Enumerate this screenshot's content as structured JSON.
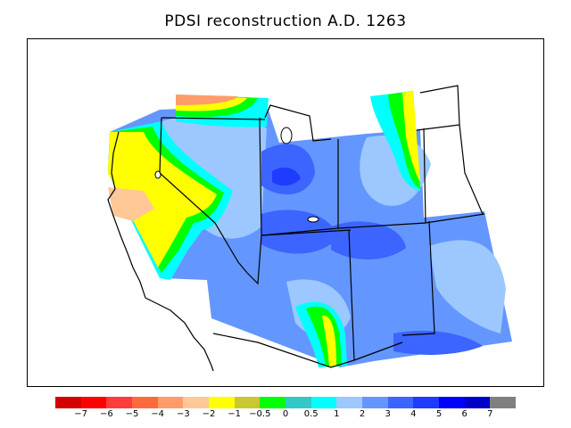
{
  "title": "PDSI reconstruction A.D. 1263",
  "legend": {
    "colors": [
      "#d40000",
      "#ff0000",
      "#ff3c3c",
      "#ff6a3c",
      "#ff9c6a",
      "#ffc896",
      "#ffff00",
      "#c8c832",
      "#00ff00",
      "#32c8c8",
      "#00ffff",
      "#9cc8ff",
      "#6496ff",
      "#3c64ff",
      "#1e3cff",
      "#0000ff",
      "#0000c8",
      "#808080"
    ],
    "ticks": [
      "−7",
      "−6",
      "−5",
      "−4",
      "−3",
      "−2",
      "−1",
      "−0.5",
      "0",
      "0.5",
      "1",
      "2",
      "3",
      "4",
      "5",
      "6",
      "7"
    ]
  }
}
